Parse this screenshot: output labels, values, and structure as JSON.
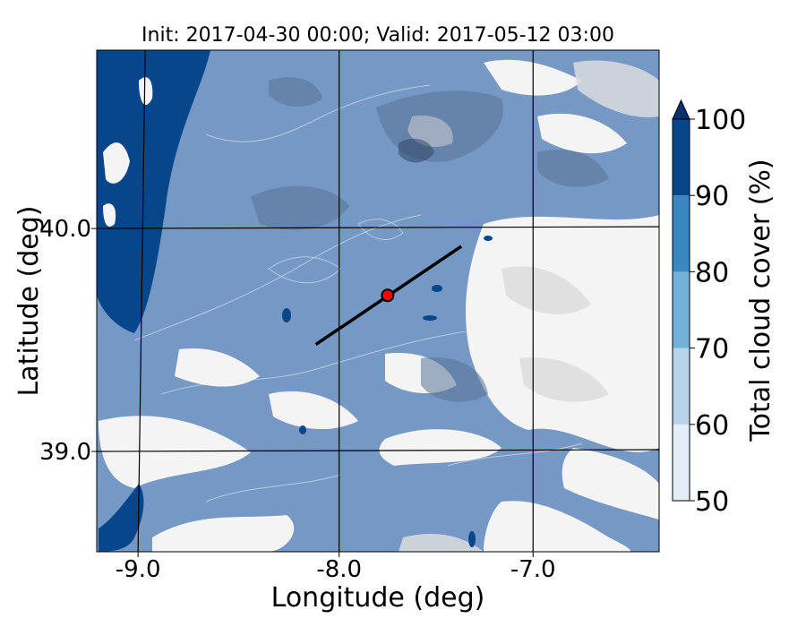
{
  "chart_data": {
    "type": "heatmap",
    "title": "Init: 2017-04-30 00:00; Valid: 2017-05-12 03:00",
    "xlabel": "Longitude (deg)",
    "ylabel": "Latitude (deg)",
    "xlim": [
      -9.25,
      -6.35
    ],
    "ylim": [
      38.55,
      40.8
    ],
    "xticks": [
      {
        "value": -9.0,
        "label": "-9.0"
      },
      {
        "value": -8.0,
        "label": "-8.0"
      },
      {
        "value": -7.0,
        "label": "-7.0"
      }
    ],
    "yticks": [
      {
        "value": 40.0,
        "label": "40.0"
      },
      {
        "value": 39.0,
        "label": "39.0"
      }
    ],
    "grid": true,
    "colorbar": {
      "label": "Total cloud cover (%)",
      "range": [
        50,
        100
      ],
      "extend": "max",
      "levels": [
        {
          "from": 50,
          "to": 60,
          "color": "#e3eef8"
        },
        {
          "from": 60,
          "to": 70,
          "color": "#b7d4ea"
        },
        {
          "from": 70,
          "to": 80,
          "color": "#73b2d8"
        },
        {
          "from": 80,
          "to": 90,
          "color": "#3a87c0"
        },
        {
          "from": 90,
          "to": 100,
          "color": "#08468c"
        }
      ],
      "extend_color": "#08306b",
      "tick_labels": [
        "50",
        "60",
        "70",
        "80",
        "90",
        "100"
      ]
    },
    "transect": {
      "start": {
        "lon": -8.12,
        "lat": 39.48
      },
      "end": {
        "lon": -7.37,
        "lat": 39.92
      },
      "color": "#000000"
    },
    "marker": {
      "lon": -7.75,
      "lat": 39.7,
      "color": "#ff0000"
    },
    "background_color": "#7598c5"
  }
}
